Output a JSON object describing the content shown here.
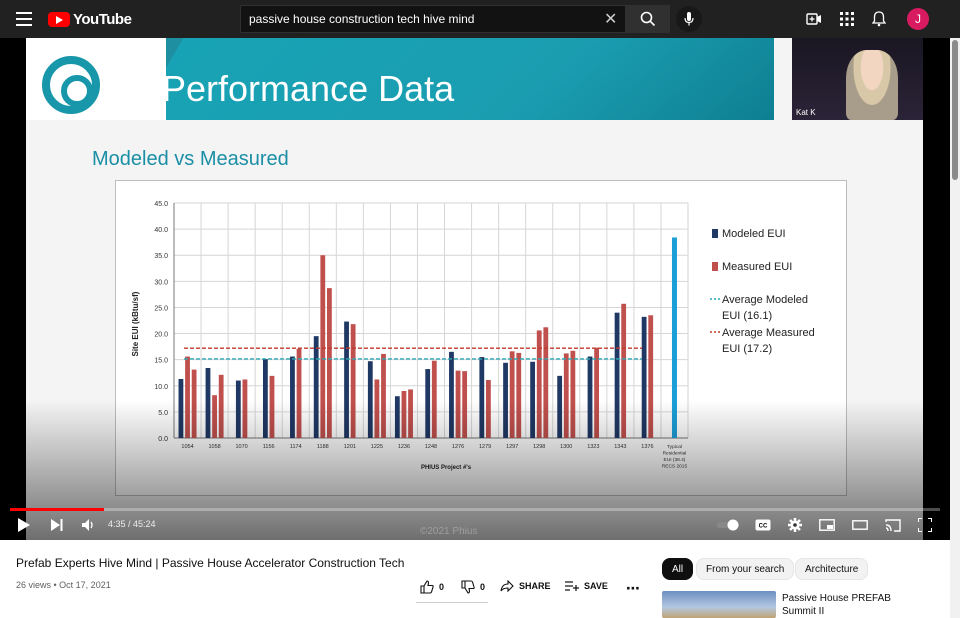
{
  "header": {
    "logo_text": "YouTube",
    "search_value": "passive house construction tech hive mind",
    "avatar_letter": "J"
  },
  "slide": {
    "title": "Performance Data",
    "subtitle": "Modeled vs Measured",
    "camera_name": "Kat K",
    "watermark": "©2021 Phius"
  },
  "chart_data": {
    "type": "bar",
    "ylabel": "Site EUI (kBtu/sf)",
    "xlabel": "PHIUS Project #'s",
    "ylim": [
      0,
      45
    ],
    "yticks": [
      "0.0",
      "5.0",
      "10.0",
      "15.0",
      "20.0",
      "25.0",
      "30.0",
      "35.0",
      "40.0",
      "45.0"
    ],
    "categories": [
      "1054",
      "1058",
      "1070",
      "1156",
      "1174",
      "1188",
      "1201",
      "1225",
      "1236",
      "1248",
      "1276",
      "1279",
      "1297",
      "1298",
      "1300",
      "1323",
      "1343",
      "1376",
      "Typical Residential EUI (38.4) RECS 2015"
    ],
    "series": [
      {
        "name": "Modeled EUI",
        "color": "#203864",
        "values": [
          11.3,
          13.4,
          11.0,
          15.1,
          15.6,
          19.5,
          22.3,
          14.7,
          8.0,
          13.2,
          16.5,
          15.5,
          14.4,
          14.6,
          11.9,
          15.6,
          24.0,
          23.2,
          null
        ]
      },
      {
        "name": "Measured EUI",
        "color": "#c0504d",
        "values": [
          15.6,
          8.2,
          11.2,
          11.9,
          17.1,
          35.0,
          21.8,
          11.2,
          9.0,
          14.8,
          12.9,
          11.1,
          16.6,
          20.6,
          16.2,
          17.3,
          25.7,
          23.5,
          null
        ]
      },
      {
        "name": "Measured EUI 2",
        "color": "#c0504d",
        "values": [
          13.1,
          12.1,
          null,
          null,
          null,
          28.7,
          null,
          16.1,
          9.3,
          null,
          12.8,
          null,
          16.3,
          21.2,
          16.7,
          null,
          null,
          null,
          null
        ]
      }
    ],
    "typical": {
      "value": 38.4,
      "color": "#1b9fd8"
    },
    "avg_modeled": {
      "value": 16.1,
      "label": "Average Modeled EUI (16.1)",
      "color": "#2aa8b5"
    },
    "avg_measured": {
      "value": 17.2,
      "label": "Average Measured EUI (17.2)",
      "color": "#c0392b"
    },
    "legend": [
      "Modeled EUI",
      "Measured EUI",
      "Average Modeled EUI (16.1)",
      "Average Measured EUI (17.2)"
    ],
    "legend_position": "right"
  },
  "player": {
    "time": "4:35 / 45:24",
    "progress": 0.101
  },
  "video": {
    "title": "Prefab Experts Hive Mind | Passive House Accelerator Construction Tech",
    "views": "26 views",
    "date": "Oct 17, 2021",
    "likes": "0",
    "dislikes": "0",
    "share_label": "SHARE",
    "save_label": "SAVE"
  },
  "chips": [
    "All",
    "From your search",
    "Architecture"
  ],
  "recommendation": {
    "title_line1": "Passive House PREFAB",
    "title_line2": "Summit II"
  }
}
